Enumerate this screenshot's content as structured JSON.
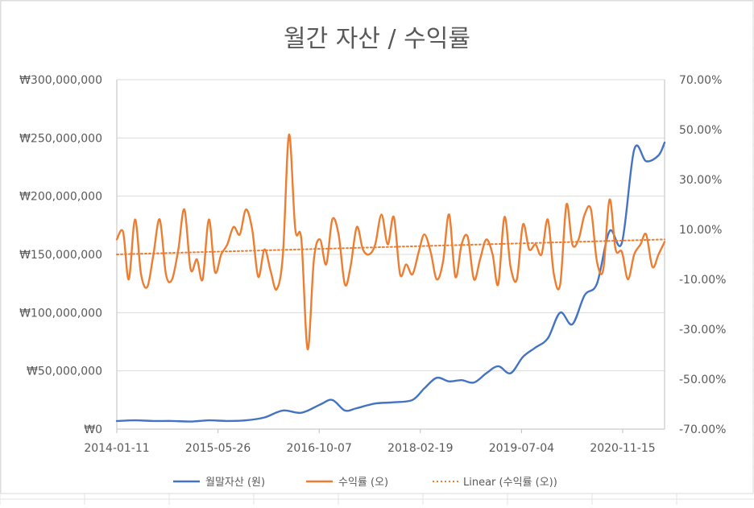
{
  "chart_data": {
    "type": "line",
    "title": "월간 자산 / 수익률",
    "x_ticks": [
      "2014-01-11",
      "2015-05-26",
      "2016-10-07",
      "2018-02-19",
      "2019-07-04",
      "2020-11-15"
    ],
    "x_range": [
      "2014-01-11",
      "2021-06-10"
    ],
    "y_left": {
      "range": [
        0,
        300000000
      ],
      "ticks": [
        "₩0",
        "₩50,000,000",
        "₩100,000,000",
        "₩150,000,000",
        "₩200,000,000",
        "₩250,000,000",
        "₩300,000,000"
      ]
    },
    "y_right": {
      "range": [
        -0.7,
        0.7
      ],
      "ticks": [
        "-70.00%",
        "-50.00%",
        "-30.00%",
        "-10.00%",
        "10.00%",
        "30.00%",
        "50.00%",
        "70.00%"
      ]
    },
    "grid": true,
    "legend_position": "bottom",
    "colors": {
      "assets": "#4472c4",
      "returns": "#ed7d31",
      "trend": "#ed7d31"
    },
    "series": [
      {
        "name": "월말자산 (원)",
        "axis": "left",
        "x": [
          "2014-01-11",
          "2014-04-11",
          "2014-07-11",
          "2014-10-11",
          "2015-01-11",
          "2015-04-11",
          "2015-07-11",
          "2015-10-11",
          "2016-01-11",
          "2016-04-11",
          "2016-07-11",
          "2016-10-11",
          "2016-12-11",
          "2017-02-11",
          "2017-04-11",
          "2017-07-11",
          "2017-10-11",
          "2018-01-11",
          "2018-03-11",
          "2018-05-11",
          "2018-07-11",
          "2018-09-11",
          "2018-11-11",
          "2019-01-11",
          "2019-03-11",
          "2019-05-11",
          "2019-07-11",
          "2019-09-11",
          "2019-11-11",
          "2020-01-11",
          "2020-03-11",
          "2020-05-11",
          "2020-07-11",
          "2020-09-11",
          "2020-11-11",
          "2021-01-11",
          "2021-03-11",
          "2021-05-11",
          "2021-06-10"
        ],
        "values": [
          7000000,
          7500000,
          7000000,
          7000000,
          6500000,
          7500000,
          7000000,
          7500000,
          10000000,
          16000000,
          14000000,
          21000000,
          25000000,
          16000000,
          18000000,
          22000000,
          23000000,
          25000000,
          35000000,
          44000000,
          41000000,
          42000000,
          40000000,
          48000000,
          54000000,
          48000000,
          62000000,
          70000000,
          78000000,
          100000000,
          90000000,
          115000000,
          125000000,
          170000000,
          160000000,
          240000000,
          230000000,
          235000000,
          246000000
        ]
      },
      {
        "name": "수익률 (오)",
        "axis": "right",
        "x": [
          "2014-01-11",
          "2014-02-11",
          "2014-03-11",
          "2014-04-11",
          "2014-05-11",
          "2014-06-11",
          "2014-07-11",
          "2014-08-11",
          "2014-09-11",
          "2014-10-11",
          "2014-11-11",
          "2014-12-11",
          "2015-01-11",
          "2015-02-11",
          "2015-03-11",
          "2015-04-11",
          "2015-05-11",
          "2015-06-11",
          "2015-07-11",
          "2015-08-11",
          "2015-09-11",
          "2015-10-11",
          "2015-11-11",
          "2015-12-11",
          "2016-01-11",
          "2016-02-11",
          "2016-03-11",
          "2016-04-11",
          "2016-05-11",
          "2016-06-11",
          "2016-07-11",
          "2016-08-11",
          "2016-09-11",
          "2016-10-11",
          "2016-11-11",
          "2016-12-11",
          "2017-01-11",
          "2017-02-11",
          "2017-03-11",
          "2017-04-11",
          "2017-05-11",
          "2017-06-11",
          "2017-07-11",
          "2017-08-11",
          "2017-09-11",
          "2017-10-11",
          "2017-11-11",
          "2017-12-11",
          "2018-01-11",
          "2018-02-11",
          "2018-03-11",
          "2018-04-11",
          "2018-05-11",
          "2018-06-11",
          "2018-07-11",
          "2018-08-11",
          "2018-09-11",
          "2018-10-11",
          "2018-11-11",
          "2018-12-11",
          "2019-01-11",
          "2019-02-11",
          "2019-03-11",
          "2019-04-11",
          "2019-05-11",
          "2019-06-11",
          "2019-07-11",
          "2019-08-11",
          "2019-09-11",
          "2019-10-11",
          "2019-11-11",
          "2019-12-11",
          "2020-01-11",
          "2020-02-11",
          "2020-03-11",
          "2020-04-11",
          "2020-05-11",
          "2020-06-11",
          "2020-07-11",
          "2020-08-11",
          "2020-09-11",
          "2020-10-11",
          "2020-11-11",
          "2020-12-11",
          "2021-01-11",
          "2021-02-11",
          "2021-03-11",
          "2021-04-11",
          "2021-05-11",
          "2021-06-10"
        ],
        "values": [
          0.06,
          0.09,
          -0.1,
          0.14,
          -0.08,
          -0.13,
          0.0,
          0.14,
          -0.08,
          -0.1,
          0.02,
          0.18,
          -0.06,
          -0.02,
          -0.1,
          0.14,
          -0.07,
          0.0,
          0.04,
          0.11,
          0.08,
          0.18,
          0.1,
          -0.09,
          0.02,
          -0.07,
          -0.14,
          0.0,
          0.48,
          0.1,
          0.06,
          -0.38,
          -0.02,
          0.06,
          -0.04,
          0.14,
          0.08,
          -0.12,
          -0.05,
          0.11,
          0.02,
          0.0,
          0.04,
          0.16,
          0.04,
          0.15,
          -0.08,
          -0.04,
          -0.08,
          0.01,
          0.08,
          0.01,
          -0.1,
          -0.03,
          0.16,
          -0.09,
          0.04,
          0.07,
          -0.1,
          -0.02,
          0.06,
          0.0,
          -0.12,
          0.15,
          -0.05,
          -0.1,
          0.12,
          0.02,
          0.04,
          0.0,
          0.14,
          -0.08,
          -0.12,
          0.2,
          0.04,
          0.06,
          0.16,
          0.18,
          -0.03,
          -0.06,
          0.22,
          0.02,
          0.01,
          -0.1,
          0.0,
          0.04,
          0.08,
          -0.05,
          0.0,
          0.05
        ]
      },
      {
        "name": "Linear (수익률 (오))",
        "axis": "right",
        "style": "dotted",
        "x": [
          "2014-01-11",
          "2021-06-10"
        ],
        "values": [
          0.0,
          0.06
        ]
      }
    ]
  }
}
